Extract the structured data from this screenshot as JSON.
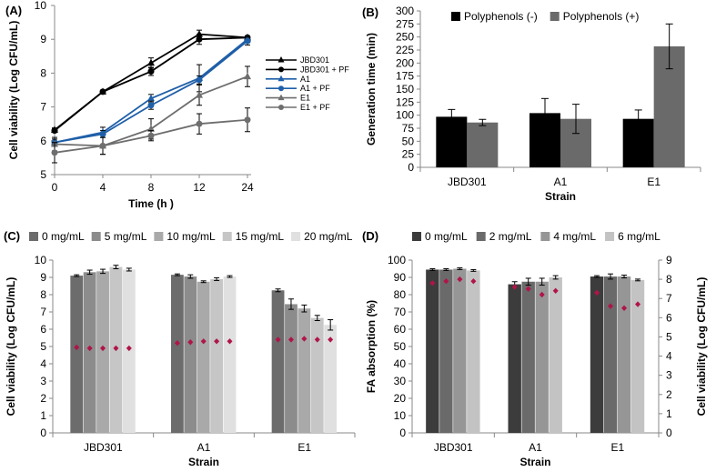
{
  "chart_data": [
    {
      "panel": "(A)",
      "type": "line",
      "xlabel": "Time (h )",
      "ylabel": "Cell viability (Log CFU/mL)",
      "categories": [
        "0",
        "4",
        "8",
        "12",
        "24"
      ],
      "ylim": [
        5,
        10
      ],
      "yticks": [
        5,
        6,
        7,
        8,
        9,
        10
      ],
      "series": [
        {
          "name": "JBD301",
          "color": "#000000",
          "marker": "triangle",
          "values": [
            6.32,
            7.45,
            8.3,
            9.15,
            9.05
          ],
          "errors": [
            0.06,
            0.05,
            0.15,
            0.12,
            0.05
          ]
        },
        {
          "name": "JBD301 + PF",
          "color": "#000000",
          "marker": "circle",
          "values": [
            6.3,
            7.45,
            8.05,
            9.0,
            9.05
          ],
          "errors": [
            0.05,
            0.05,
            0.12,
            0.15,
            0.05
          ]
        },
        {
          "name": "A1",
          "color": "#1f5fa8",
          "marker": "triangle",
          "values": [
            5.95,
            6.25,
            7.25,
            7.85,
            9.0
          ],
          "errors": [
            0.1,
            0.15,
            0.12,
            0.4,
            0.1
          ]
        },
        {
          "name": "A1 + PF",
          "color": "#1f5fa8",
          "marker": "circle",
          "values": [
            5.95,
            6.2,
            7.05,
            7.8,
            8.95
          ],
          "errors": [
            0.1,
            0.1,
            0.12,
            0.12,
            0.12
          ]
        },
        {
          "name": "E1",
          "color": "#6e6e6e",
          "marker": "triangle",
          "values": [
            5.9,
            5.85,
            6.35,
            7.35,
            7.9
          ],
          "errors": [
            0.2,
            0.25,
            0.3,
            0.3,
            0.3
          ]
        },
        {
          "name": "E1 + PF",
          "color": "#6e6e6e",
          "marker": "circle",
          "values": [
            5.65,
            5.85,
            6.15,
            6.5,
            6.62
          ],
          "errors": [
            0.3,
            0.25,
            0.15,
            0.3,
            0.35
          ]
        }
      ]
    },
    {
      "panel": "(B)",
      "type": "bar",
      "xlabel": "Strain",
      "ylabel": "Generation time (min)",
      "categories": [
        "JBD301",
        "A1",
        "E1"
      ],
      "ylim": [
        0,
        300
      ],
      "yticks": [
        0,
        25,
        50,
        75,
        100,
        125,
        150,
        175,
        200,
        225,
        250,
        275,
        300
      ],
      "series": [
        {
          "name": "Polyphenols (-)",
          "color": "#000000",
          "values": [
            97,
            104,
            93
          ],
          "errors": [
            14,
            28,
            17
          ]
        },
        {
          "name": "Polyphenols (+)",
          "color": "#6a6a6a",
          "values": [
            86,
            93,
            232
          ],
          "errors": [
            6,
            28,
            43
          ]
        }
      ]
    },
    {
      "panel": "(C)",
      "type": "bar",
      "xlabel": "Strain",
      "ylabel": "Cell viability (Log CFU/mL)",
      "categories": [
        "JBD301",
        "A1",
        "E1"
      ],
      "ylim": [
        0,
        10
      ],
      "yticks": [
        0,
        1,
        2,
        3,
        4,
        5,
        6,
        7,
        8,
        9,
        10
      ],
      "series": [
        {
          "name": "0 mg/mL",
          "color": "#6c6c6c",
          "values": [
            9.1,
            9.15,
            8.25
          ],
          "errors": [
            0.05,
            0.05,
            0.08
          ]
        },
        {
          "name": "5 mg/mL",
          "color": "#8c8c8c",
          "values": [
            9.3,
            9.05,
            7.45
          ],
          "errors": [
            0.12,
            0.1,
            0.3
          ]
        },
        {
          "name": "10 mg/mL",
          "color": "#a9a9a9",
          "values": [
            9.35,
            8.75,
            7.2
          ],
          "errors": [
            0.12,
            0.05,
            0.2
          ]
        },
        {
          "name": "15 mg/mL",
          "color": "#c6c6c6",
          "values": [
            9.6,
            8.9,
            6.65
          ],
          "errors": [
            0.1,
            0.08,
            0.15
          ]
        },
        {
          "name": "20 mg/mL",
          "color": "#e0e0e0",
          "values": [
            9.45,
            9.05,
            6.25
          ],
          "errors": [
            0.08,
            0.05,
            0.3
          ]
        }
      ],
      "markers": {
        "color": "#b0144a",
        "values": [
          [
            4.95,
            4.9,
            4.9,
            4.9,
            4.9
          ],
          [
            5.2,
            5.25,
            5.3,
            5.3,
            5.3
          ],
          [
            5.4,
            5.4,
            5.45,
            5.4,
            5.4
          ]
        ]
      }
    },
    {
      "panel": "(D)",
      "type": "bar",
      "xlabel": "Strain",
      "ylabel": "FA absorption (%)",
      "y2label": "Cell viability (Log CFU/mL)",
      "categories": [
        "JBD301",
        "A1",
        "E1"
      ],
      "ylim": [
        0,
        100
      ],
      "yticks": [
        0,
        10,
        20,
        30,
        40,
        50,
        60,
        70,
        80,
        90,
        100
      ],
      "y2lim": [
        0,
        9
      ],
      "y2ticks": [
        0,
        1,
        2,
        3,
        4,
        5,
        6,
        7,
        8,
        9
      ],
      "series": [
        {
          "name": "0 mg/mL",
          "color": "#3c3c3c",
          "values": [
            94.5,
            86.0,
            90.5
          ],
          "errors": [
            0.5,
            1.5,
            0.5
          ]
        },
        {
          "name": "2 mg/mL",
          "color": "#6a6a6a",
          "values": [
            94.5,
            87.5,
            90.5
          ],
          "errors": [
            0.5,
            2.0,
            1.5
          ]
        },
        {
          "name": "4 mg/mL",
          "color": "#969696",
          "values": [
            95.0,
            87.5,
            90.5
          ],
          "errors": [
            0.5,
            2.0,
            0.8
          ]
        },
        {
          "name": "6 mg/mL",
          "color": "#c3c3c3",
          "values": [
            94.0,
            90.0,
            88.5
          ],
          "errors": [
            0.5,
            1.0,
            0.5
          ]
        }
      ],
      "markers": {
        "color": "#b0144a",
        "axis": "y2",
        "values": [
          [
            7.8,
            7.9,
            8.0,
            7.9
          ],
          [
            7.6,
            7.5,
            7.2,
            7.4
          ],
          [
            7.3,
            6.6,
            6.5,
            6.7
          ]
        ]
      }
    }
  ]
}
